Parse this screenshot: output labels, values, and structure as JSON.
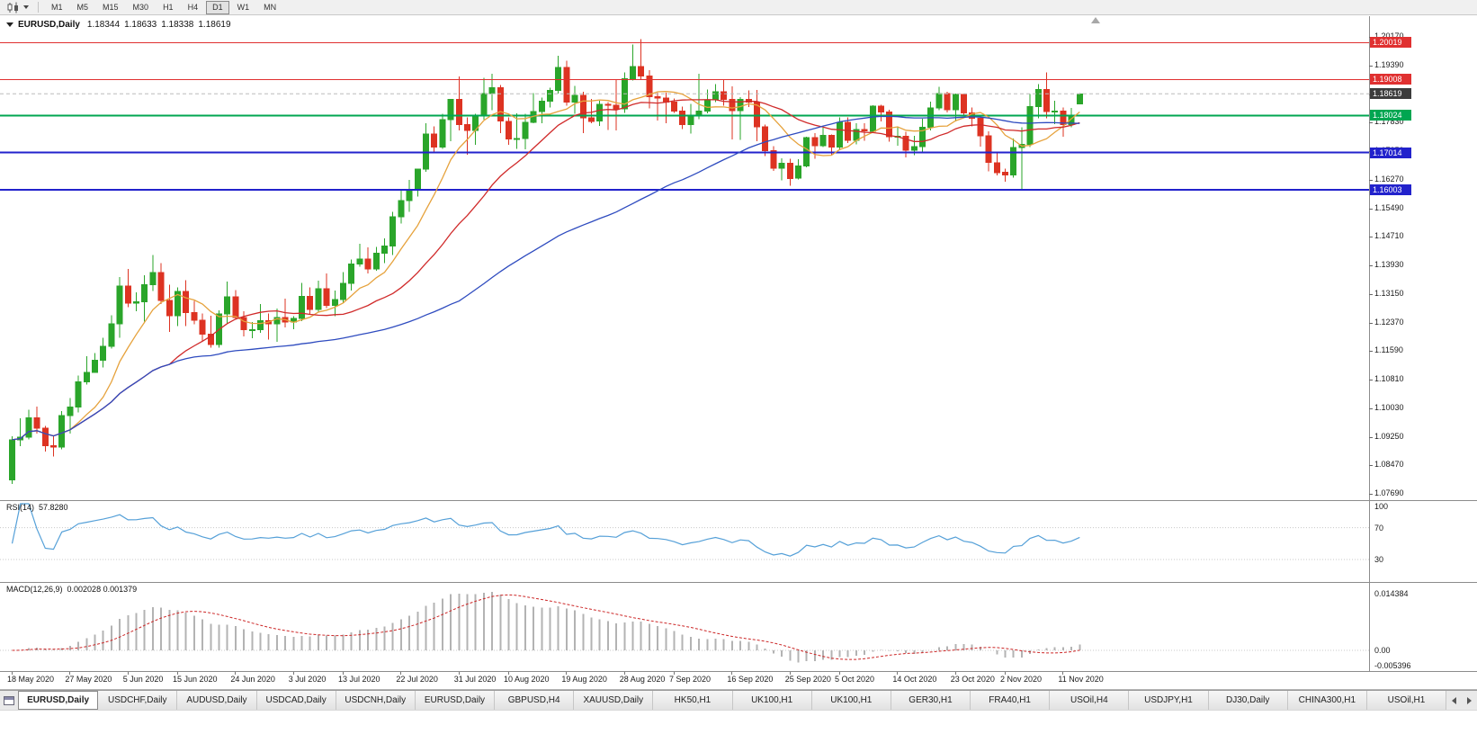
{
  "toolbar": {
    "timeframes": [
      {
        "label": "M1",
        "active": false
      },
      {
        "label": "M5",
        "active": false
      },
      {
        "label": "M15",
        "active": false
      },
      {
        "label": "M30",
        "active": false
      },
      {
        "label": "H1",
        "active": false
      },
      {
        "label": "H4",
        "active": false
      },
      {
        "label": "D1",
        "active": true
      },
      {
        "label": "W1",
        "active": false
      },
      {
        "label": "MN",
        "active": false
      }
    ]
  },
  "chart": {
    "symbol_title": "EURUSD,Daily",
    "ohlc": {
      "open": "1.18344",
      "high": "1.18633",
      "low": "1.18338",
      "close": "1.18619"
    }
  },
  "chart_data": {
    "type": "candlestick",
    "symbol": "EURUSD",
    "period": "Daily",
    "current_bar": {
      "open": 1.18344,
      "high": 1.18633,
      "low": 1.18338,
      "close": 1.18619
    },
    "price_axis_labels": [
      "1.20170",
      "1.19390",
      "1.18610",
      "1.17830",
      "1.17050",
      "1.16270",
      "1.15490",
      "1.14710",
      "1.13930",
      "1.13150",
      "1.12370",
      "1.11590",
      "1.10810",
      "1.10030",
      "1.09250",
      "1.08470",
      "1.07690"
    ],
    "date_labels": [
      {
        "text": "18 May 2020",
        "index": 0
      },
      {
        "text": "27 May 2020",
        "index": 7
      },
      {
        "text": "5 Jun 2020",
        "index": 14
      },
      {
        "text": "15 Jun 2020",
        "index": 20
      },
      {
        "text": "24 Jun 2020",
        "index": 27
      },
      {
        "text": "3 Jul 2020",
        "index": 34
      },
      {
        "text": "13 Jul 2020",
        "index": 40
      },
      {
        "text": "22 Jul 2020",
        "index": 47
      },
      {
        "text": "31 Jul 2020",
        "index": 54
      },
      {
        "text": "10 Aug 2020",
        "index": 60
      },
      {
        "text": "19 Aug 2020",
        "index": 67
      },
      {
        "text": "28 Aug 2020",
        "index": 74
      },
      {
        "text": "7 Sep 2020",
        "index": 80
      },
      {
        "text": "16 Sep 2020",
        "index": 87
      },
      {
        "text": "25 Sep 2020",
        "index": 94
      },
      {
        "text": "5 Oct 2020",
        "index": 100
      },
      {
        "text": "14 Oct 2020",
        "index": 107
      },
      {
        "text": "23 Oct 2020",
        "index": 114
      },
      {
        "text": "2 Nov 2020",
        "index": 120
      },
      {
        "text": "11 Nov 2020",
        "index": 127
      }
    ],
    "hlines": [
      {
        "price": 1.20019,
        "tag": "1.20019",
        "color": "#e03030",
        "width": 1
      },
      {
        "price": 1.19008,
        "tag": "1.19008",
        "color": "#e03030",
        "width": 1
      },
      {
        "price": 1.18024,
        "tag": "1.18024",
        "color": "#00a651",
        "width": 2
      },
      {
        "price": 1.17014,
        "tag": "1.17014",
        "color": "#2222cc",
        "width": 2
      },
      {
        "price": 1.16003,
        "tag": "1.16003",
        "color": "#2222cc",
        "width": 2
      }
    ],
    "bid_line": {
      "price": 1.18619,
      "tag": "1.18619",
      "tag_bg": "#3c3c3c"
    },
    "moving_averages": [
      {
        "period": 8,
        "color": "#e6a23c"
      },
      {
        "period": 20,
        "color": "#d02a2a"
      },
      {
        "period": 55,
        "color": "#2e4bbf"
      }
    ],
    "candle_colors": {
      "up": "#2aa52a",
      "down": "#dd3322"
    },
    "candles": [
      [
        1.0807,
        1.0927,
        1.0797,
        1.0917
      ],
      [
        1.0917,
        1.0976,
        1.0899,
        1.0924
      ],
      [
        1.0924,
        1.0999,
        1.0918,
        1.0977
      ],
      [
        1.0977,
        1.1008,
        1.0934,
        1.0949
      ],
      [
        1.0949,
        1.0955,
        1.0885,
        1.0901
      ],
      [
        1.0901,
        1.0927,
        1.0871,
        1.0897
      ],
      [
        1.0897,
        1.0995,
        1.0891,
        1.0983
      ],
      [
        1.0983,
        1.1031,
        1.0934,
        1.1006
      ],
      [
        1.1006,
        1.1093,
        1.0992,
        1.1075
      ],
      [
        1.1075,
        1.1145,
        1.1068,
        1.1101
      ],
      [
        1.1101,
        1.1154,
        1.1101,
        1.1134
      ],
      [
        1.1134,
        1.1195,
        1.1115,
        1.1172
      ],
      [
        1.1172,
        1.1257,
        1.1166,
        1.1234
      ],
      [
        1.1234,
        1.1362,
        1.1195,
        1.1337
      ],
      [
        1.1337,
        1.1383,
        1.1279,
        1.129
      ],
      [
        1.129,
        1.132,
        1.1268,
        1.1294
      ],
      [
        1.1294,
        1.1366,
        1.124,
        1.134
      ],
      [
        1.134,
        1.1422,
        1.1323,
        1.1374
      ],
      [
        1.1374,
        1.14,
        1.1288,
        1.1297
      ],
      [
        1.1297,
        1.134,
        1.1212,
        1.1256
      ],
      [
        1.1256,
        1.1333,
        1.1227,
        1.1322
      ],
      [
        1.1322,
        1.1353,
        1.1228,
        1.1264
      ],
      [
        1.1264,
        1.1296,
        1.1233,
        1.1243
      ],
      [
        1.1243,
        1.1262,
        1.1185,
        1.1205
      ],
      [
        1.1205,
        1.1256,
        1.1168,
        1.1177
      ],
      [
        1.1177,
        1.1271,
        1.1168,
        1.1261
      ],
      [
        1.1261,
        1.1349,
        1.1232,
        1.1307
      ],
      [
        1.1307,
        1.1326,
        1.1245,
        1.1251
      ],
      [
        1.1251,
        1.1268,
        1.1199,
        1.1217
      ],
      [
        1.1217,
        1.1239,
        1.1194,
        1.1218
      ],
      [
        1.1218,
        1.1288,
        1.1209,
        1.1242
      ],
      [
        1.1242,
        1.1262,
        1.1191,
        1.1234
      ],
      [
        1.1234,
        1.1276,
        1.1185,
        1.1251
      ],
      [
        1.1251,
        1.1303,
        1.1224,
        1.1239
      ],
      [
        1.1239,
        1.1254,
        1.1219,
        1.1248
      ],
      [
        1.1248,
        1.1346,
        1.1241,
        1.1309
      ],
      [
        1.1309,
        1.1333,
        1.1259,
        1.1273
      ],
      [
        1.1273,
        1.1352,
        1.1266,
        1.1329
      ],
      [
        1.1329,
        1.1371,
        1.1277,
        1.1284
      ],
      [
        1.1284,
        1.1324,
        1.1254,
        1.13
      ],
      [
        1.13,
        1.1375,
        1.1292,
        1.1344
      ],
      [
        1.1344,
        1.1409,
        1.1325,
        1.1397
      ],
      [
        1.1397,
        1.1452,
        1.139,
        1.1411
      ],
      [
        1.1411,
        1.1442,
        1.1371,
        1.1384
      ],
      [
        1.1384,
        1.1444,
        1.1379,
        1.1427
      ],
      [
        1.1427,
        1.1467,
        1.14,
        1.1446
      ],
      [
        1.1446,
        1.154,
        1.1422,
        1.1526
      ],
      [
        1.1526,
        1.1601,
        1.1507,
        1.157
      ],
      [
        1.157,
        1.1627,
        1.154,
        1.1598
      ],
      [
        1.1598,
        1.1658,
        1.1581,
        1.1656
      ],
      [
        1.1656,
        1.1781,
        1.1649,
        1.1752
      ],
      [
        1.1752,
        1.1773,
        1.17,
        1.1716
      ],
      [
        1.1716,
        1.1807,
        1.1712,
        1.1791
      ],
      [
        1.1791,
        1.1847,
        1.1732,
        1.1846
      ],
      [
        1.1846,
        1.1909,
        1.1762,
        1.1778
      ],
      [
        1.1778,
        1.1797,
        1.1696,
        1.1762
      ],
      [
        1.1762,
        1.1807,
        1.1722,
        1.1803
      ],
      [
        1.1803,
        1.1905,
        1.1791,
        1.1863
      ],
      [
        1.1863,
        1.1916,
        1.1817,
        1.1878
      ],
      [
        1.1878,
        1.1886,
        1.1754,
        1.1787
      ],
      [
        1.1787,
        1.1798,
        1.1722,
        1.1738
      ],
      [
        1.1738,
        1.1808,
        1.1711,
        1.174
      ],
      [
        1.174,
        1.1807,
        1.171,
        1.1784
      ],
      [
        1.1784,
        1.1864,
        1.1781,
        1.1813
      ],
      [
        1.1813,
        1.1851,
        1.1782,
        1.1842
      ],
      [
        1.1842,
        1.1879,
        1.1824,
        1.1871
      ],
      [
        1.1871,
        1.1966,
        1.1863,
        1.1934
      ],
      [
        1.1934,
        1.1952,
        1.1829,
        1.1839
      ],
      [
        1.1839,
        1.1883,
        1.1807,
        1.1858
      ],
      [
        1.1858,
        1.1868,
        1.1754,
        1.1796
      ],
      [
        1.1796,
        1.1848,
        1.1781,
        1.1787
      ],
      [
        1.1787,
        1.1843,
        1.1774,
        1.1833
      ],
      [
        1.1833,
        1.1839,
        1.1763,
        1.1831
      ],
      [
        1.1831,
        1.19,
        1.1762,
        1.1821
      ],
      [
        1.1821,
        1.192,
        1.181,
        1.1903
      ],
      [
        1.1903,
        1.1997,
        1.1898,
        1.1936
      ],
      [
        1.1936,
        1.2011,
        1.1901,
        1.1911
      ],
      [
        1.1911,
        1.1927,
        1.1822,
        1.1854
      ],
      [
        1.1854,
        1.1865,
        1.1789,
        1.185
      ],
      [
        1.185,
        1.1865,
        1.1781,
        1.1839
      ],
      [
        1.1839,
        1.1849,
        1.181,
        1.1815
      ],
      [
        1.1815,
        1.1827,
        1.1766,
        1.1778
      ],
      [
        1.1778,
        1.1834,
        1.1753,
        1.1801
      ],
      [
        1.1801,
        1.1917,
        1.1792,
        1.1815
      ],
      [
        1.1815,
        1.1874,
        1.1809,
        1.1845
      ],
      [
        1.1845,
        1.1888,
        1.1839,
        1.1867
      ],
      [
        1.1867,
        1.19,
        1.1829,
        1.1847
      ],
      [
        1.1847,
        1.1882,
        1.1737,
        1.1816
      ],
      [
        1.1816,
        1.1853,
        1.1736,
        1.1847
      ],
      [
        1.1847,
        1.1871,
        1.1826,
        1.1839
      ],
      [
        1.1839,
        1.1872,
        1.1732,
        1.1772
      ],
      [
        1.1772,
        1.1778,
        1.1692,
        1.1707
      ],
      [
        1.1707,
        1.1719,
        1.1651,
        1.1659
      ],
      [
        1.1659,
        1.1686,
        1.1626,
        1.1672
      ],
      [
        1.1672,
        1.1685,
        1.1611,
        1.1631
      ],
      [
        1.1631,
        1.1683,
        1.1628,
        1.1665
      ],
      [
        1.1665,
        1.1745,
        1.1661,
        1.1742
      ],
      [
        1.1742,
        1.1755,
        1.1684,
        1.172
      ],
      [
        1.172,
        1.1769,
        1.1717,
        1.1748
      ],
      [
        1.1748,
        1.1751,
        1.1695,
        1.1716
      ],
      [
        1.1716,
        1.1797,
        1.1708,
        1.1784
      ],
      [
        1.1784,
        1.1798,
        1.1727,
        1.1735
      ],
      [
        1.1735,
        1.1781,
        1.1724,
        1.1764
      ],
      [
        1.1764,
        1.1782,
        1.1733,
        1.176
      ],
      [
        1.176,
        1.1831,
        1.1757,
        1.1828
      ],
      [
        1.1828,
        1.1832,
        1.1786,
        1.1812
      ],
      [
        1.1812,
        1.1818,
        1.1731,
        1.1745
      ],
      [
        1.1745,
        1.1773,
        1.172,
        1.1746
      ],
      [
        1.1746,
        1.1758,
        1.1688,
        1.1708
      ],
      [
        1.1708,
        1.1747,
        1.1694,
        1.1718
      ],
      [
        1.1718,
        1.1794,
        1.1703,
        1.177
      ],
      [
        1.177,
        1.184,
        1.1762,
        1.1823
      ],
      [
        1.1823,
        1.1881,
        1.1817,
        1.1863
      ],
      [
        1.1863,
        1.1867,
        1.1811,
        1.1818
      ],
      [
        1.1818,
        1.1863,
        1.1787,
        1.186
      ],
      [
        1.186,
        1.1863,
        1.18,
        1.181
      ],
      [
        1.181,
        1.1825,
        1.1773,
        1.1795
      ],
      [
        1.1795,
        1.18,
        1.1718,
        1.1747
      ],
      [
        1.1747,
        1.1759,
        1.165,
        1.1674
      ],
      [
        1.1674,
        1.1704,
        1.1639,
        1.1647
      ],
      [
        1.1647,
        1.1658,
        1.1622,
        1.164
      ],
      [
        1.164,
        1.174,
        1.1633,
        1.1715
      ],
      [
        1.1715,
        1.1771,
        1.1602,
        1.1724
      ],
      [
        1.1724,
        1.1861,
        1.1716,
        1.1827
      ],
      [
        1.1827,
        1.1888,
        1.1795,
        1.1874
      ],
      [
        1.1874,
        1.192,
        1.1795,
        1.1813
      ],
      [
        1.1813,
        1.1843,
        1.1779,
        1.1815
      ],
      [
        1.1815,
        1.1824,
        1.1745,
        1.1778
      ],
      [
        1.1778,
        1.1823,
        1.1771,
        1.1804
      ],
      [
        1.18344,
        1.18633,
        1.18338,
        1.18619
      ]
    ],
    "rsi": {
      "label": "RSI(14)",
      "value": "57.8280",
      "color": "#55a0d8",
      "levels": [
        100,
        70,
        30
      ],
      "level_labels": [
        "100",
        "70",
        "30"
      ]
    },
    "macd": {
      "label": "MACD(12,26,9)",
      "values": "0.002028 0.001379",
      "hist_color": "#b3b3b3",
      "signal_color": "#cc2626",
      "scale_labels": [
        "0.014384",
        "0.00",
        "-0.005396"
      ]
    }
  },
  "tabs": {
    "items": [
      {
        "label": "EURUSD,Daily",
        "active": true
      },
      {
        "label": "USDCHF,Daily",
        "active": false
      },
      {
        "label": "AUDUSD,Daily",
        "active": false
      },
      {
        "label": "USDCAD,Daily",
        "active": false
      },
      {
        "label": "USDCNH,Daily",
        "active": false
      },
      {
        "label": "EURUSD,Daily",
        "active": false
      },
      {
        "label": "GBPUSD,H4",
        "active": false
      },
      {
        "label": "XAUUSD,Daily",
        "active": false
      },
      {
        "label": "HK50,H1",
        "active": false
      },
      {
        "label": "UK100,H1",
        "active": false
      },
      {
        "label": "UK100,H1",
        "active": false
      },
      {
        "label": "GER30,H1",
        "active": false
      },
      {
        "label": "FRA40,H1",
        "active": false
      },
      {
        "label": "USOil,H4",
        "active": false
      },
      {
        "label": "USDJPY,H1",
        "active": false
      },
      {
        "label": "DJ30,Daily",
        "active": false
      },
      {
        "label": "CHINA300,H1",
        "active": false
      },
      {
        "label": "USOil,H1",
        "active": false
      }
    ]
  }
}
